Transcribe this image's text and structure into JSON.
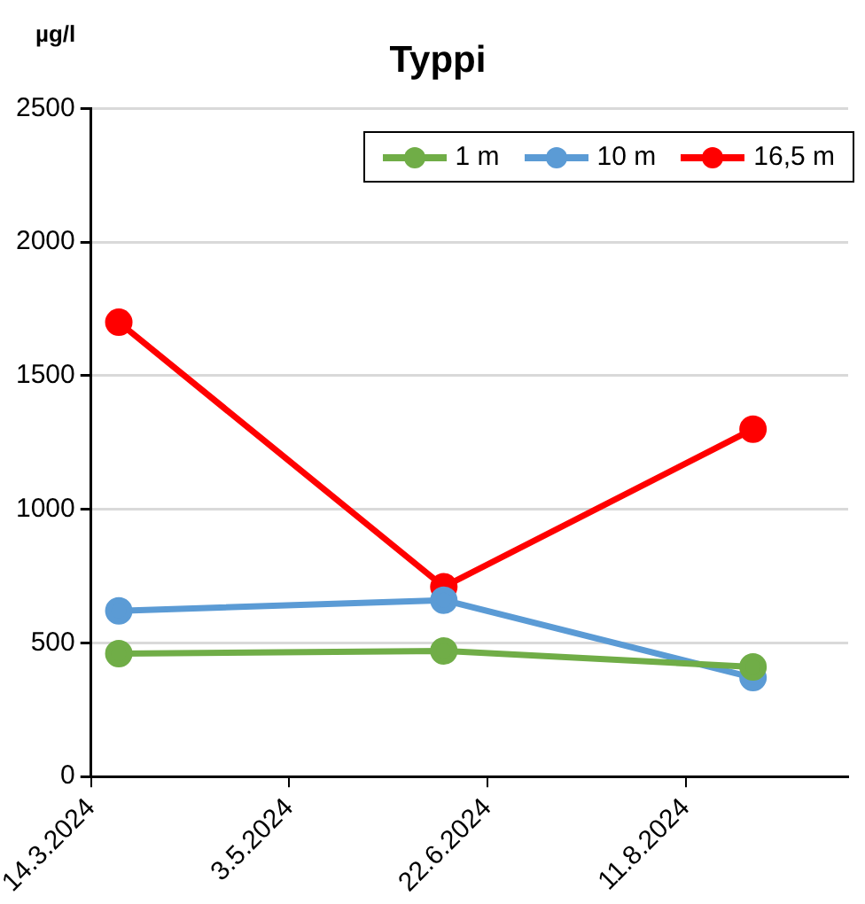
{
  "chart_data": {
    "type": "line",
    "title": "Typpi",
    "ylabel": "µg/l",
    "x": [
      "2024-03-21",
      "2024-06-11",
      "2024-08-28"
    ],
    "series": [
      {
        "name": "1 m",
        "color": "#70ad47",
        "values": [
          460,
          470,
          410
        ]
      },
      {
        "name": "10 m",
        "color": "#5b9bd5",
        "values": [
          620,
          660,
          370
        ]
      },
      {
        "name": "16,5 m",
        "color": "#ff0000",
        "values": [
          1700,
          710,
          1300
        ]
      }
    ],
    "xlim": [
      "2024-03-14",
      "2024-09-21"
    ],
    "xticks": [
      {
        "value": "2024-03-14",
        "label": "14.3.2024"
      },
      {
        "value": "2024-05-03",
        "label": "3.5.2024"
      },
      {
        "value": "2024-06-22",
        "label": "22.6.2024"
      },
      {
        "value": "2024-08-11",
        "label": "11.8.2024"
      }
    ],
    "ylim": [
      0,
      2500
    ],
    "yticks": [
      0,
      500,
      1000,
      1500,
      2000,
      2500
    ],
    "grid": "y",
    "legend": "top right",
    "marker": "circle",
    "line_style": "solid"
  }
}
